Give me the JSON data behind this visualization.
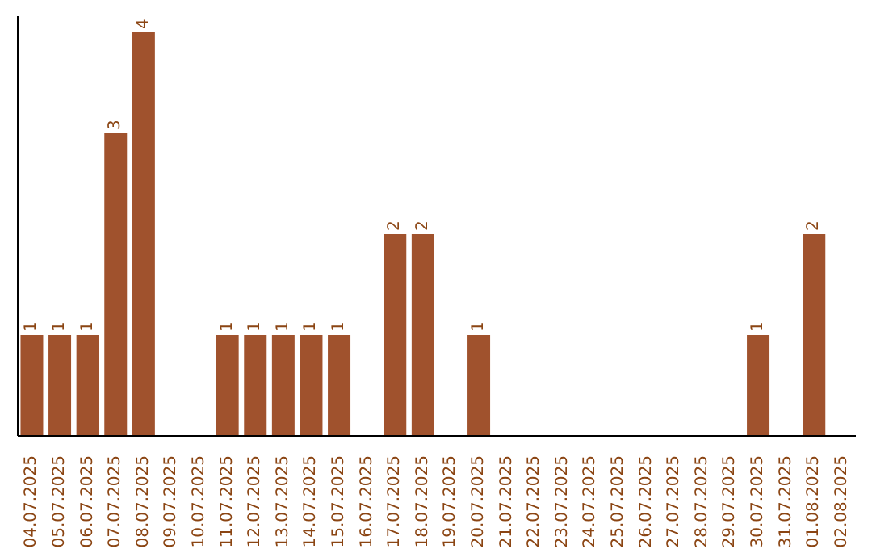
{
  "chart_data": {
    "type": "bar",
    "categories": [
      "04.07.2025",
      "05.07.2025",
      "06.07.2025",
      "07.07.2025",
      "08.07.2025",
      "09.07.2025",
      "10.07.2025",
      "11.07.2025",
      "12.07.2025",
      "13.07.2025",
      "14.07.2025",
      "15.07.2025",
      "16.07.2025",
      "17.07.2025",
      "18.07.2025",
      "19.07.2025",
      "20.07.2025",
      "21.07.2025",
      "22.07.2025",
      "23.07.2025",
      "24.07.2025",
      "25.07.2025",
      "26.07.2025",
      "27.07.2025",
      "28.07.2025",
      "29.07.2025",
      "30.07.2025",
      "31.07.2025",
      "01.08.2025",
      "02.08.2025"
    ],
    "values": [
      1,
      1,
      1,
      3,
      4,
      0,
      0,
      1,
      1,
      1,
      1,
      1,
      0,
      2,
      2,
      0,
      1,
      0,
      0,
      0,
      0,
      0,
      0,
      0,
      0,
      0,
      1,
      0,
      2,
      0
    ],
    "value_labels": [
      "1",
      "1",
      "1",
      "3",
      "4",
      null,
      null,
      "1",
      "1",
      "1",
      "1",
      "1",
      null,
      "2",
      "2",
      null,
      "1",
      null,
      null,
      null,
      null,
      null,
      null,
      null,
      null,
      null,
      "1",
      null,
      "2",
      null
    ],
    "color": "#a0522d",
    "ylim": [
      0,
      4.16
    ],
    "tick_labels": "x",
    "grid": false,
    "legend": false
  }
}
